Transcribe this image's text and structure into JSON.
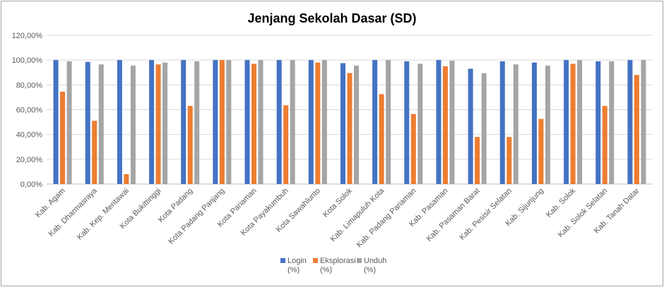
{
  "chart_data": {
    "type": "bar",
    "title": "Jenjang Sekolah Dasar (SD)",
    "xlabel": "",
    "ylabel": "",
    "ylim": [
      0,
      120
    ],
    "y_ticks": [
      "0,00%",
      "20,00%",
      "40,00%",
      "60,00%",
      "80,00%",
      "100,00%",
      "120,00%"
    ],
    "grid": true,
    "legend_position": "bottom",
    "categories": [
      "Kab. Agam",
      "Kab. Dharmasraya",
      "Kab. Kep. Mentawai",
      "Kota Bukittinggi",
      "Kota Padang",
      "Kota Padang Panjang",
      "Kota Pariaman",
      "Kota Payakumbuh",
      "Kota Sawahlunto",
      "Kota Solok",
      "Kab. Limapuluh Kota",
      "Kab. Padang Pariaman",
      "Kab. Pasaman",
      "Kab. Pasaman Barat",
      "Kab. Pesisir Selatan",
      "Kab. Sijunjung",
      "Kab. Solok",
      "Kab. Solok Selatan",
      "Kab. Tanah Datar"
    ],
    "series": [
      {
        "name": "Login",
        "legend_lines": [
          "Login",
          "(%)"
        ],
        "color": "#4472c4",
        "values": [
          100,
          98.5,
          100,
          100,
          100,
          100,
          100,
          100,
          100,
          97.5,
          100,
          99,
          100,
          93,
          99,
          98,
          100,
          99,
          100
        ]
      },
      {
        "name": "Eksplorasi",
        "legend_lines": [
          "Eksplorasi",
          "(%)"
        ],
        "color": "#ed7d31",
        "values": [
          74.5,
          51,
          8,
          96.5,
          63,
          100,
          97,
          63.5,
          98,
          89.5,
          72.5,
          56.5,
          95,
          38,
          38,
          52.5,
          97,
          63,
          88
        ]
      },
      {
        "name": "Unduh",
        "legend_lines": [
          "Unduh",
          "(%)"
        ],
        "color": "#a5a5a5",
        "values": [
          99,
          96.5,
          95.5,
          98,
          99,
          100,
          100,
          100,
          100,
          95.5,
          100,
          97,
          99.5,
          89.5,
          96.5,
          95.5,
          100,
          99,
          100
        ]
      }
    ]
  }
}
